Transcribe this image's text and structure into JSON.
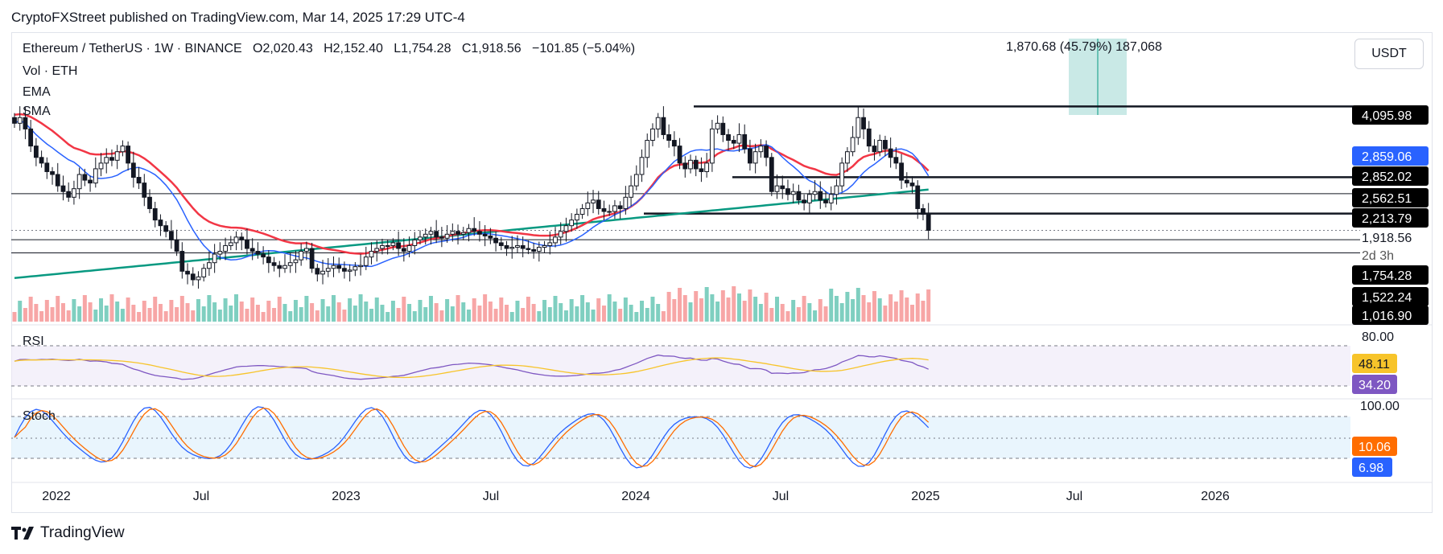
{
  "header": {
    "published_by": "CryptoFXStreet published on TradingView.com, Mar 14, 2025 17:29 UTC-4"
  },
  "legend": {
    "symbol": "Ethereum / TetherUS · 1W · BINANCE",
    "open": "O2,020.43",
    "high": "H2,152.40",
    "low": "L1,754.28",
    "close": "C1,918.56",
    "change": "−101.85 (−5.04%)",
    "vol": "Vol · ETH",
    "ema": "EMA",
    "sma": "SMA"
  },
  "measure_label": "1,870.68 (45.79%) 187,068",
  "currency_button": "USDT",
  "brand": "TradingView",
  "colors": {
    "up": "#ffffff",
    "down": "#131722",
    "ema": "#f23645",
    "sma_blue": "#2962ff",
    "sma_green": "#089981",
    "vol_up": "#7fcfc0",
    "vol_down": "#f7a6a6",
    "rsi_line": "#7e57c2",
    "rsi_ma": "#f7c42a",
    "stoch_k": "#2962ff",
    "stoch_d": "#ff6d00",
    "measure_fill": "#b2dfdb"
  },
  "chart_data": {
    "type": "candlestick",
    "xlabels": [
      "2022",
      "Jul",
      "2023",
      "Jul",
      "2024",
      "Jul",
      "2025",
      "Jul",
      "2026"
    ],
    "price_labels": [
      {
        "value": "4,095.98",
        "style": "black"
      },
      {
        "value": "2,859.06",
        "style": "blue"
      },
      {
        "value": "2,852.02",
        "style": "black"
      },
      {
        "value": "2,562.51",
        "style": "black"
      },
      {
        "value": "2,213.79",
        "style": "black"
      },
      {
        "value": "1,918.56",
        "style": "plain"
      },
      {
        "value": "2d 3h",
        "style": "plain-grey"
      },
      {
        "value": "1,754.28",
        "style": "black"
      },
      {
        "value": "1,522.24",
        "style": "black"
      },
      {
        "value": "1,016.90",
        "style": "black"
      }
    ],
    "horizontal_levels": [
      4095.98,
      2852.02,
      2562.51,
      2213.79,
      1754.28,
      1522.24,
      1016.9
    ],
    "weekly_close_path": [
      3800,
      3900,
      3700,
      3400,
      3200,
      3100,
      2950,
      2900,
      2700,
      2600,
      2500,
      2650,
      2900,
      2800,
      2750,
      3000,
      3100,
      3200,
      3150,
      3300,
      3400,
      3100,
      2850,
      2750,
      2500,
      2300,
      2100,
      2000,
      1900,
      1750,
      1550,
      1200,
      1150,
      1050,
      1100,
      1250,
      1350,
      1500,
      1550,
      1650,
      1700,
      1800,
      1750,
      1600,
      1550,
      1500,
      1450,
      1350,
      1300,
      1250,
      1300,
      1350,
      1400,
      1550,
      1600,
      1250,
      1150,
      1200,
      1250,
      1300,
      1250,
      1200,
      1220,
      1280,
      1300,
      1450,
      1550,
      1600,
      1650,
      1650,
      1700,
      1600,
      1550,
      1650,
      1750,
      1800,
      1850,
      1900,
      1800,
      1780,
      1850,
      1900,
      1850,
      1880,
      1950,
      1900,
      1850,
      1820,
      1780,
      1700,
      1650,
      1600,
      1620,
      1650,
      1600,
      1580,
      1550,
      1620,
      1650,
      1700,
      1800,
      1900,
      2000,
      2100,
      2200,
      2300,
      2400,
      2450,
      2300,
      2250,
      2250,
      2350,
      2300,
      2500,
      2700,
      2900,
      3200,
      3500,
      3700,
      3900,
      3600,
      3500,
      3400,
      3100,
      3000,
      3150,
      3000,
      2950,
      3100,
      3700,
      3800,
      3600,
      3500,
      3450,
      3600,
      3350,
      3100,
      3300,
      3400,
      3200,
      2600,
      2700,
      2650,
      2550,
      2600,
      2450,
      2400,
      2550,
      2600,
      2450,
      2400,
      2550,
      2700,
      3100,
      3300,
      3550,
      3900,
      3700,
      3400,
      3300,
      3500,
      3350,
      3200,
      3100,
      2800,
      2750,
      2700,
      2300,
      2200,
      1918.56
    ],
    "rsi": {
      "label": "RSI",
      "levels": [
        80.0
      ],
      "values_labels": [
        {
          "value": "48.11",
          "color": "#f7c42a"
        },
        {
          "value": "34.20",
          "color": "#7e57c2"
        }
      ],
      "top_label": "80.00"
    },
    "stoch": {
      "label": "Stoch",
      "top_label": "100.00",
      "values_labels": [
        {
          "value": "10.06",
          "color": "#ff6d00"
        },
        {
          "value": "6.98",
          "color": "#2962ff"
        }
      ]
    }
  }
}
